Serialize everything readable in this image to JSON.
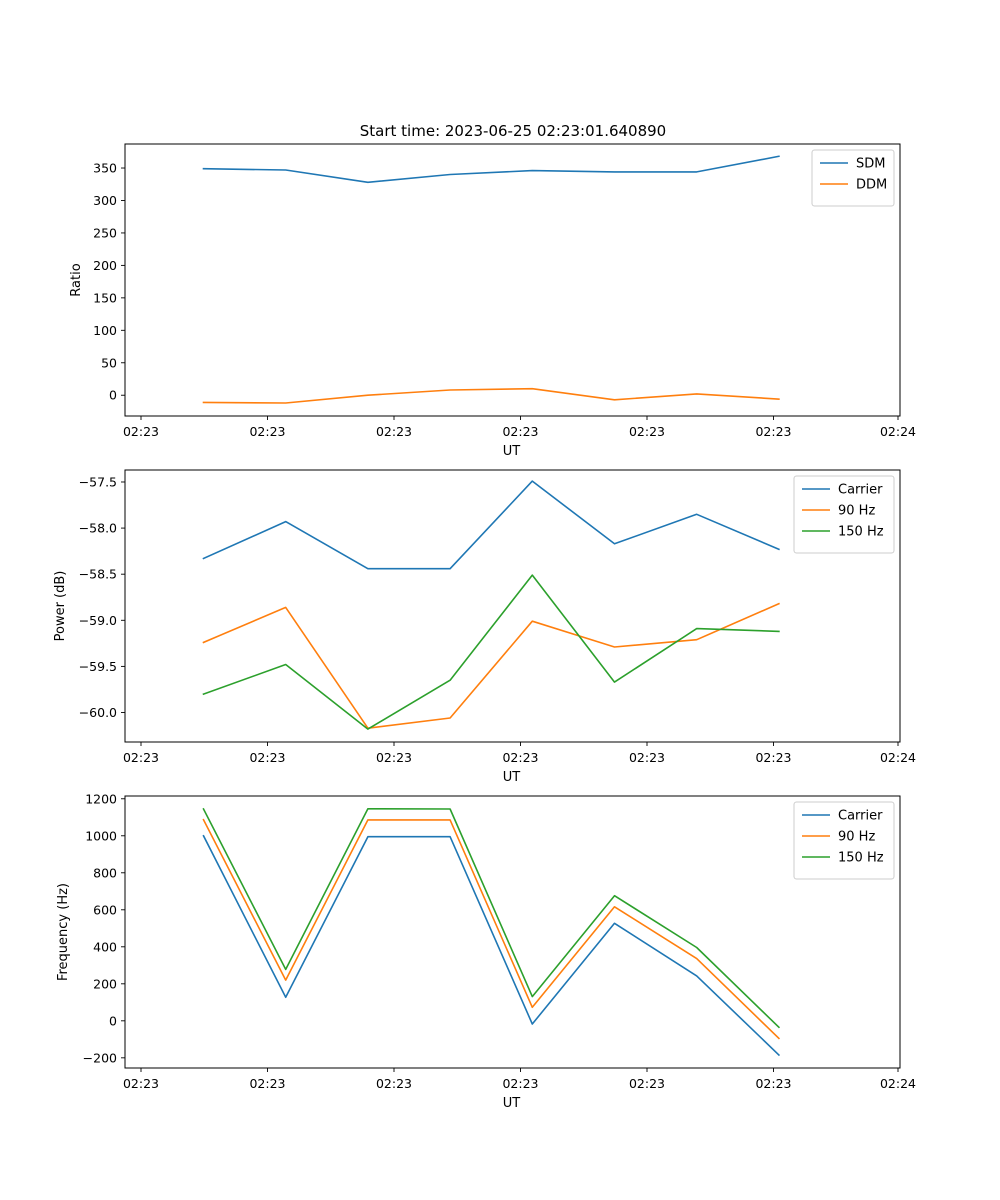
{
  "figure": {
    "title": "Start time: 2023-06-25 02:23:01.640890"
  },
  "chart_data": [
    {
      "type": "line",
      "title": "Start time: 2023-06-25 02:23:01.640890",
      "xlabel": "UT",
      "ylabel": "Ratio",
      "x_tick_labels": [
        "02:23",
        "02:23",
        "02:23",
        "02:23",
        "02:23",
        "02:23",
        "02:23"
      ],
      "x_tick_last": "02:24",
      "y_ticks": [
        0,
        50,
        100,
        150,
        200,
        250,
        300,
        350
      ],
      "y_tick_labels": [
        "0",
        "50",
        "100",
        "150",
        "200",
        "250",
        "300",
        "350"
      ],
      "ylim": [
        -32,
        387
      ],
      "legend_position": "top-right",
      "series": [
        {
          "name": "SDM",
          "color": "#1f77b4",
          "values": [
            349,
            347,
            328,
            340,
            346,
            344,
            344,
            368
          ]
        },
        {
          "name": "DDM",
          "color": "#ff7f0e",
          "values": [
            -11,
            -12,
            0,
            8,
            10,
            -7,
            2,
            -6
          ]
        }
      ]
    },
    {
      "type": "line",
      "xlabel": "UT",
      "ylabel": "Power (dB)",
      "x_tick_labels": [
        "02:23",
        "02:23",
        "02:23",
        "02:23",
        "02:23",
        "02:23",
        "02:23"
      ],
      "x_tick_last": "02:24",
      "y_ticks": [
        -60.0,
        -59.5,
        -59.0,
        -58.5,
        -58.0,
        -57.5
      ],
      "y_tick_labels": [
        "−60.0",
        "−59.5",
        "−59.0",
        "−58.5",
        "−58.0",
        "−57.5"
      ],
      "ylim": [
        -60.32,
        -57.37
      ],
      "legend_position": "top-right",
      "series": [
        {
          "name": "Carrier",
          "color": "#1f77b4",
          "values": [
            -58.33,
            -57.93,
            -58.44,
            -58.44,
            -57.49,
            -58.17,
            -57.85,
            -58.23
          ]
        },
        {
          "name": "90 Hz",
          "color": "#ff7f0e",
          "values": [
            -59.24,
            -58.86,
            -60.17,
            -60.06,
            -59.01,
            -59.29,
            -59.21,
            -58.82
          ]
        },
        {
          "name": "150 Hz",
          "color": "#2ca02c",
          "values": [
            -59.8,
            -59.48,
            -60.18,
            -59.65,
            -58.51,
            -59.67,
            -59.09,
            -59.12
          ]
        }
      ]
    },
    {
      "type": "line",
      "xlabel": "UT",
      "ylabel": "Frequency (Hz)",
      "x_tick_labels": [
        "02:23",
        "02:23",
        "02:23",
        "02:23",
        "02:23",
        "02:23",
        "02:23"
      ],
      "x_tick_last": "02:24",
      "y_ticks": [
        -200,
        0,
        200,
        400,
        600,
        800,
        1000,
        1200
      ],
      "y_tick_labels": [
        "−200",
        "0",
        "200",
        "400",
        "600",
        "800",
        "1000",
        "1200"
      ],
      "ylim": [
        -255,
        1215
      ],
      "legend_position": "top-right",
      "series": [
        {
          "name": "Carrier",
          "color": "#1f77b4",
          "values": [
            1000,
            127,
            995,
            995,
            -17,
            527,
            243,
            -185
          ]
        },
        {
          "name": "90 Hz",
          "color": "#ff7f0e",
          "values": [
            1087,
            220,
            1086,
            1086,
            73,
            616,
            336,
            -95
          ]
        },
        {
          "name": "150 Hz",
          "color": "#2ca02c",
          "values": [
            1145,
            278,
            1146,
            1145,
            131,
            676,
            396,
            -35
          ]
        }
      ]
    }
  ]
}
